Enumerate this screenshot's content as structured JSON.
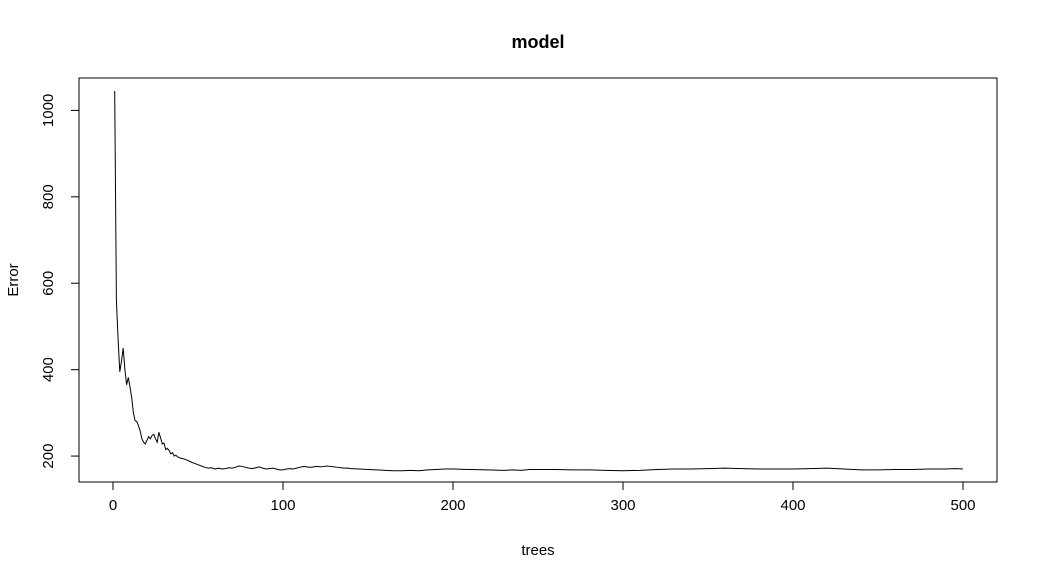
{
  "chart_data": {
    "type": "line",
    "title": "model",
    "xlabel": "trees",
    "ylabel": "Error",
    "xlim": [
      -20,
      520
    ],
    "ylim": [
      140,
      1075
    ],
    "x_ticks": [
      0,
      100,
      200,
      300,
      400,
      500
    ],
    "y_ticks": [
      200,
      400,
      600,
      800,
      1000
    ],
    "grid": false,
    "legend": "none",
    "series": [
      {
        "color": "#000000",
        "points": [
          [
            1,
            1045
          ],
          [
            2,
            560
          ],
          [
            3,
            470
          ],
          [
            4,
            395
          ],
          [
            5,
            420
          ],
          [
            6,
            450
          ],
          [
            7,
            400
          ],
          [
            8,
            365
          ],
          [
            9,
            382
          ],
          [
            10,
            360
          ],
          [
            11,
            335
          ],
          [
            12,
            300
          ],
          [
            13,
            282
          ],
          [
            14,
            280
          ],
          [
            15,
            270
          ],
          [
            16,
            258
          ],
          [
            17,
            240
          ],
          [
            18,
            232
          ],
          [
            19,
            228
          ],
          [
            20,
            237
          ],
          [
            21,
            245
          ],
          [
            22,
            240
          ],
          [
            23,
            248
          ],
          [
            24,
            250
          ],
          [
            25,
            240
          ],
          [
            26,
            232
          ],
          [
            27,
            255
          ],
          [
            28,
            242
          ],
          [
            29,
            228
          ],
          [
            30,
            230
          ],
          [
            31,
            215
          ],
          [
            32,
            218
          ],
          [
            33,
            213
          ],
          [
            34,
            205
          ],
          [
            35,
            208
          ],
          [
            36,
            200
          ],
          [
            37,
            202
          ],
          [
            38,
            198
          ],
          [
            40,
            195
          ],
          [
            42,
            193
          ],
          [
            44,
            190
          ],
          [
            46,
            186
          ],
          [
            48,
            183
          ],
          [
            50,
            180
          ],
          [
            52,
            177
          ],
          [
            54,
            174
          ],
          [
            56,
            172
          ],
          [
            58,
            173
          ],
          [
            60,
            170
          ],
          [
            62,
            172
          ],
          [
            64,
            170
          ],
          [
            66,
            171
          ],
          [
            68,
            173
          ],
          [
            70,
            172
          ],
          [
            72,
            174
          ],
          [
            74,
            177
          ],
          [
            76,
            176
          ],
          [
            78,
            174
          ],
          [
            80,
            172
          ],
          [
            82,
            171
          ],
          [
            84,
            173
          ],
          [
            86,
            175
          ],
          [
            88,
            172
          ],
          [
            90,
            170
          ],
          [
            92,
            171
          ],
          [
            94,
            172
          ],
          [
            96,
            170
          ],
          [
            98,
            168
          ],
          [
            100,
            168
          ],
          [
            102,
            170
          ],
          [
            104,
            171
          ],
          [
            106,
            170
          ],
          [
            108,
            172
          ],
          [
            110,
            174
          ],
          [
            112,
            176
          ],
          [
            114,
            175
          ],
          [
            116,
            174
          ],
          [
            118,
            175
          ],
          [
            120,
            176
          ],
          [
            122,
            175
          ],
          [
            124,
            176
          ],
          [
            126,
            177
          ],
          [
            128,
            176
          ],
          [
            130,
            175
          ],
          [
            132,
            174
          ],
          [
            134,
            173
          ],
          [
            136,
            172
          ],
          [
            138,
            172
          ],
          [
            140,
            171
          ],
          [
            145,
            170
          ],
          [
            150,
            169
          ],
          [
            155,
            168
          ],
          [
            160,
            167
          ],
          [
            165,
            166
          ],
          [
            170,
            166
          ],
          [
            175,
            167
          ],
          [
            180,
            166
          ],
          [
            185,
            168
          ],
          [
            190,
            169
          ],
          [
            195,
            170
          ],
          [
            200,
            170
          ],
          [
            210,
            169
          ],
          [
            220,
            168
          ],
          [
            230,
            167
          ],
          [
            235,
            168
          ],
          [
            240,
            167
          ],
          [
            245,
            169
          ],
          [
            250,
            169
          ],
          [
            260,
            169
          ],
          [
            270,
            168
          ],
          [
            280,
            168
          ],
          [
            290,
            167
          ],
          [
            300,
            166
          ],
          [
            310,
            167
          ],
          [
            320,
            169
          ],
          [
            330,
            170
          ],
          [
            340,
            170
          ],
          [
            350,
            171
          ],
          [
            360,
            172
          ],
          [
            370,
            171
          ],
          [
            380,
            170
          ],
          [
            390,
            170
          ],
          [
            400,
            170
          ],
          [
            410,
            171
          ],
          [
            420,
            172
          ],
          [
            430,
            170
          ],
          [
            440,
            168
          ],
          [
            450,
            168
          ],
          [
            460,
            169
          ],
          [
            470,
            169
          ],
          [
            480,
            170
          ],
          [
            490,
            170
          ],
          [
            495,
            171
          ],
          [
            500,
            170
          ]
        ]
      }
    ]
  }
}
